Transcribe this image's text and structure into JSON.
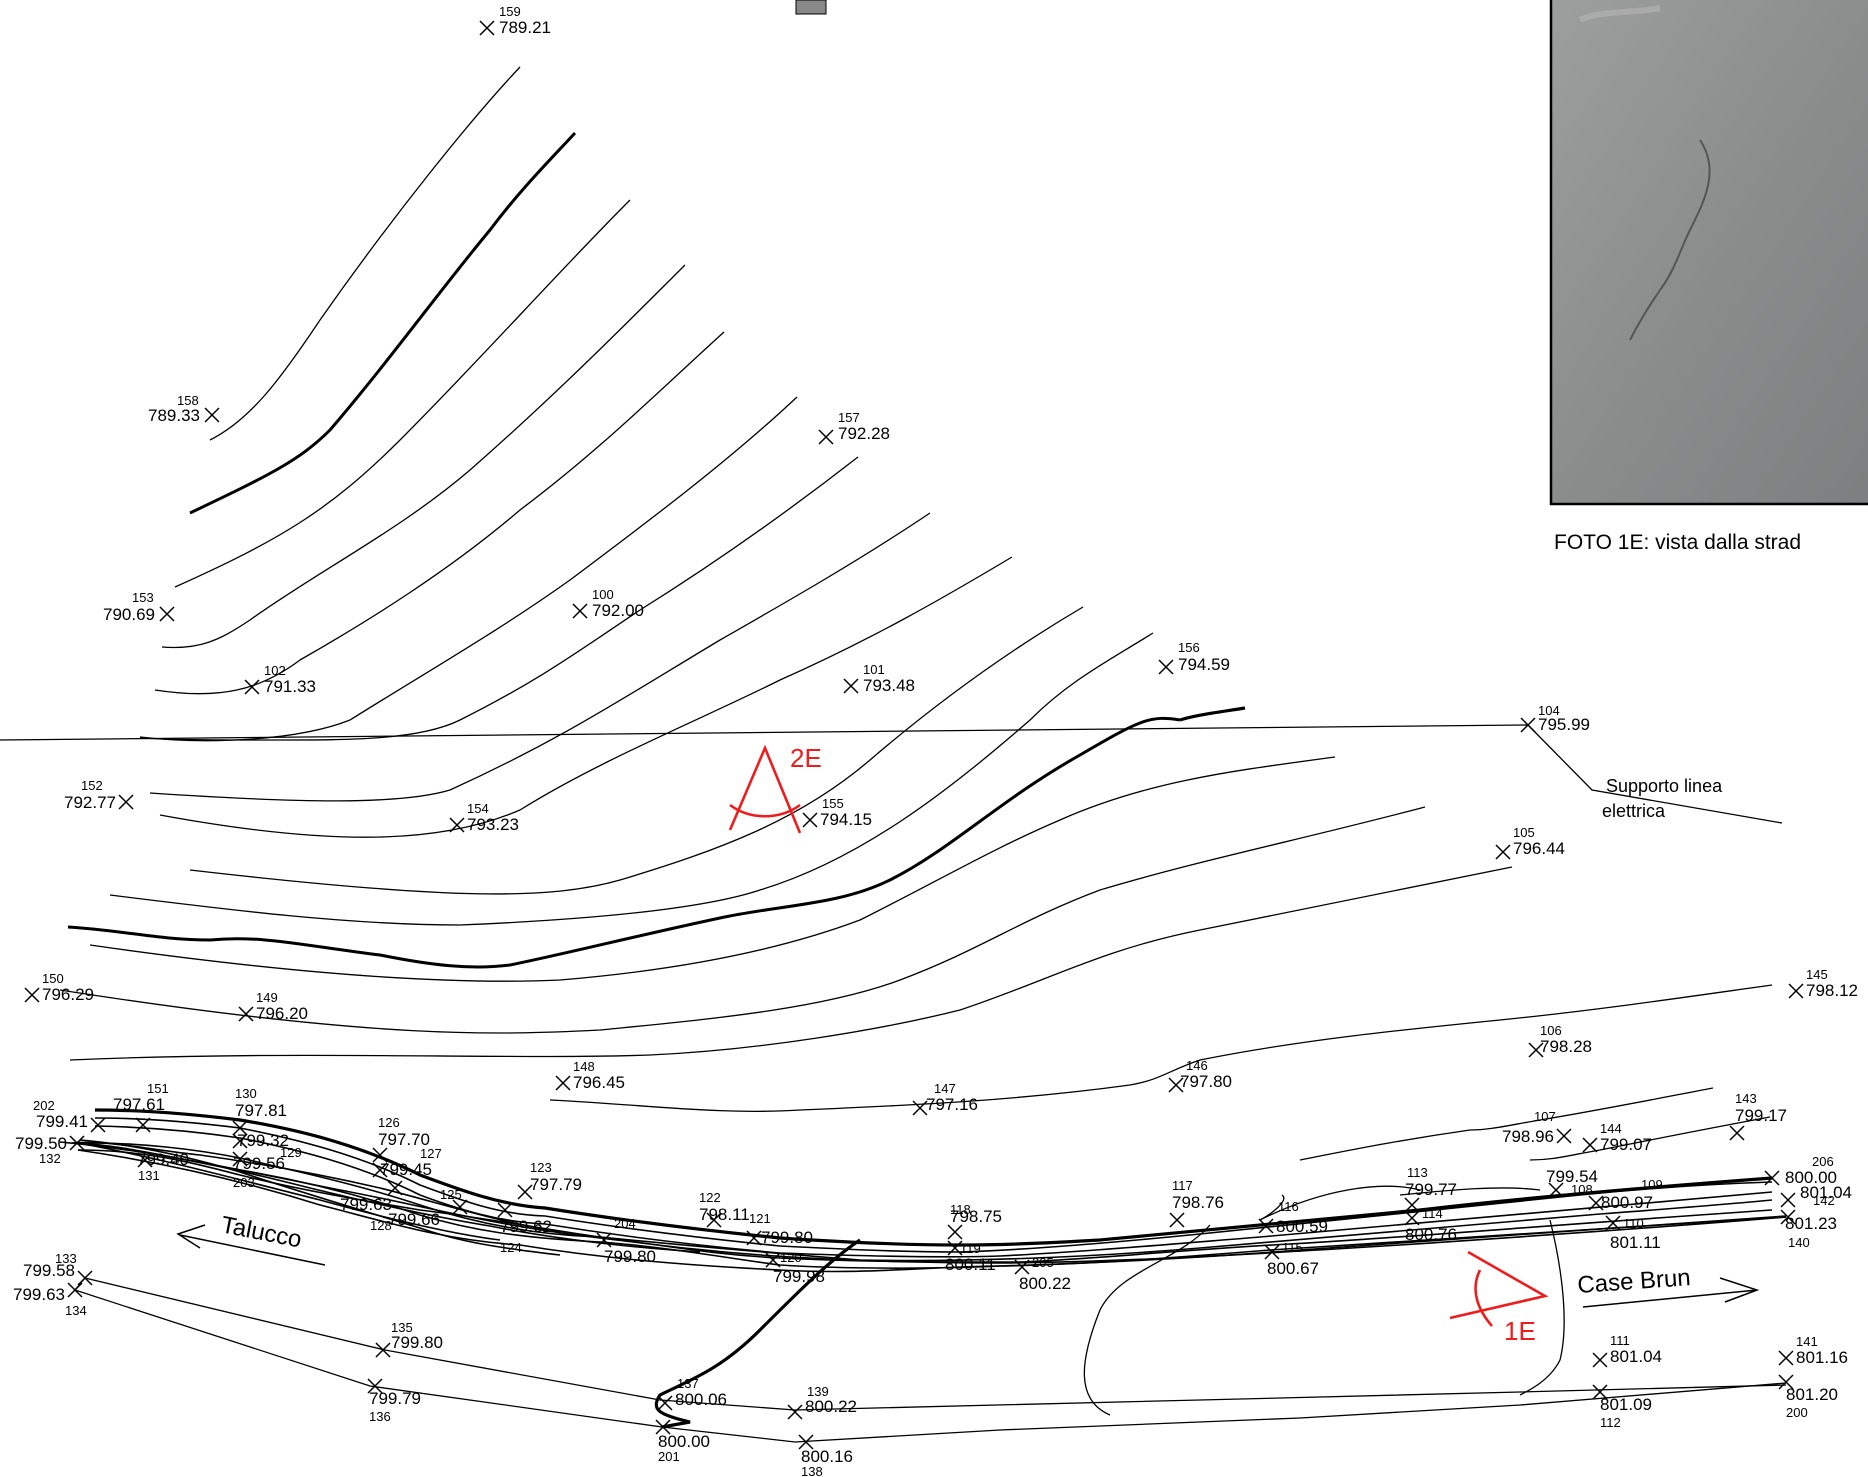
{
  "photo": {
    "caption": "FOTO 1E: vista dalla strad"
  },
  "labels": {
    "talucco": "Talucco",
    "case_brun": "Case Brun",
    "support_line1": "Supporto linea",
    "support_line2": "elettrica",
    "view_1e": "1E",
    "view_2e": "2E"
  },
  "colors": {
    "annotation": "#ee1c1c"
  },
  "survey_points": [
    {
      "id": "159",
      "elev": "789.21"
    },
    {
      "id": "158",
      "elev": "789.33"
    },
    {
      "id": "157",
      "elev": "792.28"
    },
    {
      "id": "153",
      "elev": "790.69"
    },
    {
      "id": "100",
      "elev": "792.00"
    },
    {
      "id": "102",
      "elev": "791.33"
    },
    {
      "id": "101",
      "elev": "793.48"
    },
    {
      "id": "156",
      "elev": "794.59"
    },
    {
      "id": "104",
      "elev": "795.99"
    },
    {
      "id": "152",
      "elev": "792.77"
    },
    {
      "id": "154",
      "elev": "793.23"
    },
    {
      "id": "155",
      "elev": "794.15"
    },
    {
      "id": "105",
      "elev": "796.44"
    },
    {
      "id": "150",
      "elev": "796.29"
    },
    {
      "id": "149",
      "elev": "796.20"
    },
    {
      "id": "145",
      "elev": "798.12"
    },
    {
      "id": "106",
      "elev": "798.28"
    },
    {
      "id": "148",
      "elev": "796.45"
    },
    {
      "id": "146",
      "elev": "797.80"
    },
    {
      "id": "147",
      "elev": "797.16"
    },
    {
      "id": "143",
      "elev": "799.17"
    },
    {
      "id": "107",
      "elev": "798.96"
    },
    {
      "id": "144",
      "elev": "799.07"
    },
    {
      "id": "202",
      "elev": "799.41"
    },
    {
      "id": "151",
      "elev": "797.61"
    },
    {
      "id": "130",
      "elev": "797.81"
    },
    {
      "id": "132",
      "elev": "799.50"
    },
    {
      "id": "131",
      "elev": "799.40"
    },
    {
      "id": "129",
      "elev": "799.32"
    },
    {
      "id": "203",
      "elev": "799.56"
    },
    {
      "id": "126",
      "elev": "797.70"
    },
    {
      "id": "127",
      "elev": "799.45"
    },
    {
      "id": "128",
      "elev": "799.63"
    },
    {
      "id": "125",
      "elev": "799.66"
    },
    {
      "id": "123",
      "elev": "797.79"
    },
    {
      "id": "124",
      "elev": "799.62"
    },
    {
      "id": "204",
      "elev": "799.80"
    },
    {
      "id": "122",
      "elev": "798.11"
    },
    {
      "id": "121",
      "elev": "799.80"
    },
    {
      "id": "120",
      "elev": "799.98"
    },
    {
      "id": "118",
      "elev": "798.75"
    },
    {
      "id": "119",
      "elev": "800.11"
    },
    {
      "id": "205",
      "elev": "800.22"
    },
    {
      "id": "117",
      "elev": "798.76"
    },
    {
      "id": "116",
      "elev": "800.59"
    },
    {
      "id": "115",
      "elev": "800.67"
    },
    {
      "id": "113",
      "elev": "799.77"
    },
    {
      "id": "114",
      "elev": "800.76"
    },
    {
      "id": "108",
      "elev": "799.54"
    },
    {
      "id": "109",
      "elev": "800.97"
    },
    {
      "id": "110",
      "elev": "801.11"
    },
    {
      "id": "206",
      "elev": "800.00"
    },
    {
      "id": "142",
      "elev": "801.04"
    },
    {
      "id": "140",
      "elev": "801.23"
    },
    {
      "id": "133",
      "elev": "799.58"
    },
    {
      "id": "134",
      "elev": "799.63"
    },
    {
      "id": "135",
      "elev": "799.80"
    },
    {
      "id": "136",
      "elev": "799.79"
    },
    {
      "id": "137",
      "elev": "800.06"
    },
    {
      "id": "139",
      "elev": "800.22"
    },
    {
      "id": "201",
      "elev": "800.00"
    },
    {
      "id": "138",
      "elev": "800.16"
    },
    {
      "id": "111",
      "elev": "801.04"
    },
    {
      "id": "112",
      "elev": "801.09"
    },
    {
      "id": "141",
      "elev": "801.16"
    },
    {
      "id": "200",
      "elev": "801.20"
    }
  ]
}
